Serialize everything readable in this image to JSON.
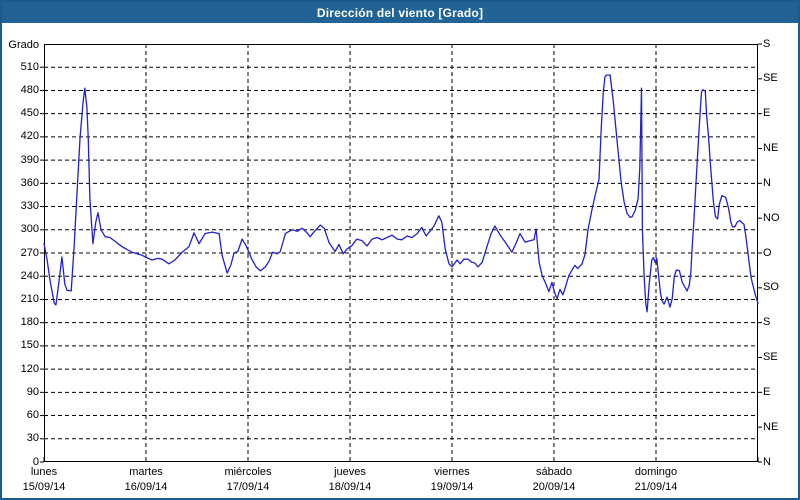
{
  "window": {
    "title": "Dirección del viento [Grado]"
  },
  "colors": {
    "titlebar_bg": "#206394",
    "window_border": "#1c5a8b",
    "line": "#2121c8",
    "grid": "#000000",
    "text": "#000000",
    "plot_bg": "#ffffff"
  },
  "chart_data": {
    "type": "line",
    "title": "Dirección del viento [Grado]",
    "legend_position": "none",
    "grid": {
      "style": "dashed",
      "h_step_deg": 30,
      "v_step_hours": 24
    },
    "x_axis": {
      "hours_range": [
        0,
        168
      ],
      "days": [
        {
          "name": "lunes",
          "date": "15/09/14"
        },
        {
          "name": "martes",
          "date": "16/09/14"
        },
        {
          "name": "miércoles",
          "date": "17/09/14"
        },
        {
          "name": "jueves",
          "date": "18/09/14"
        },
        {
          "name": "viernes",
          "date": "19/09/14"
        },
        {
          "name": "sábado",
          "date": "20/09/14"
        },
        {
          "name": "domingo",
          "date": "21/09/14"
        }
      ]
    },
    "y_axis_left": {
      "unit": "Grado",
      "tick_min": 0,
      "tick_max": 510,
      "tick_step": 30,
      "scale_max": 540
    },
    "y_axis_right": {
      "ticks": [
        {
          "deg": 540,
          "label": "S"
        },
        {
          "deg": 495,
          "label": "SE"
        },
        {
          "deg": 450,
          "label": "E"
        },
        {
          "deg": 405,
          "label": "NE"
        },
        {
          "deg": 360,
          "label": "N"
        },
        {
          "deg": 315,
          "label": "NO"
        },
        {
          "deg": 270,
          "label": "O"
        },
        {
          "deg": 225,
          "label": "SO"
        },
        {
          "deg": 180,
          "label": "S"
        },
        {
          "deg": 135,
          "label": "SE"
        },
        {
          "deg": 90,
          "label": "E"
        },
        {
          "deg": 45,
          "label": "NE"
        },
        {
          "deg": 0,
          "label": "N"
        }
      ]
    },
    "series": [
      {
        "name": "Dirección del viento",
        "color": "#2121c8",
        "points": [
          [
            0,
            282
          ],
          [
            0.7,
            262
          ],
          [
            1.4,
            235
          ],
          [
            2.4,
            205
          ],
          [
            2.8,
            203
          ],
          [
            3.5,
            232
          ],
          [
            4.2,
            265
          ],
          [
            4.9,
            230
          ],
          [
            5.4,
            222
          ],
          [
            6.4,
            221
          ],
          [
            7.1,
            280
          ],
          [
            7.8,
            350
          ],
          [
            8.5,
            420
          ],
          [
            9.2,
            465
          ],
          [
            9.6,
            483
          ],
          [
            10.1,
            458
          ],
          [
            10.4,
            420
          ],
          [
            10.8,
            340
          ],
          [
            11.5,
            282
          ],
          [
            12.2,
            310
          ],
          [
            12.7,
            322
          ],
          [
            13.4,
            300
          ],
          [
            14.4,
            291
          ],
          [
            15.5,
            290
          ],
          [
            16.5,
            286
          ],
          [
            18.4,
            278
          ],
          [
            20.7,
            271
          ],
          [
            23.1,
            267
          ],
          [
            23.8,
            265
          ],
          [
            25.4,
            261
          ],
          [
            26.8,
            263
          ],
          [
            27.8,
            262
          ],
          [
            29.4,
            256
          ],
          [
            30.8,
            261
          ],
          [
            32.5,
            271
          ],
          [
            34.1,
            278
          ],
          [
            35.3,
            296
          ],
          [
            36.5,
            282
          ],
          [
            37.9,
            295
          ],
          [
            39.5,
            297
          ],
          [
            41.2,
            295
          ],
          [
            41.9,
            267
          ],
          [
            43.1,
            244
          ],
          [
            44,
            255
          ],
          [
            44.7,
            270
          ],
          [
            45.6,
            272
          ],
          [
            46.6,
            288
          ],
          [
            47.5,
            280
          ],
          [
            48.9,
            262
          ],
          [
            49.9,
            252
          ],
          [
            50.9,
            247
          ],
          [
            52.1,
            252
          ],
          [
            53,
            260
          ],
          [
            53.8,
            271
          ],
          [
            54.9,
            269
          ],
          [
            55.6,
            272
          ],
          [
            56.8,
            295
          ],
          [
            57.7,
            298
          ],
          [
            58.4,
            300
          ],
          [
            59.6,
            298
          ],
          [
            60.7,
            302
          ],
          [
            61.9,
            296
          ],
          [
            62.6,
            291
          ],
          [
            63.5,
            297
          ],
          [
            65,
            306
          ],
          [
            65.9,
            302
          ],
          [
            67.1,
            283
          ],
          [
            68.5,
            272
          ],
          [
            69.4,
            281
          ],
          [
            70.4,
            269
          ],
          [
            71.3,
            275
          ],
          [
            72.5,
            280
          ],
          [
            73.6,
            288
          ],
          [
            74.8,
            286
          ],
          [
            76,
            279
          ],
          [
            77.2,
            288
          ],
          [
            78.4,
            290
          ],
          [
            79.5,
            287
          ],
          [
            80.7,
            290
          ],
          [
            81.9,
            293
          ],
          [
            83.1,
            288
          ],
          [
            84.2,
            287
          ],
          [
            85.4,
            292
          ],
          [
            86.6,
            290
          ],
          [
            87.8,
            295
          ],
          [
            88.9,
            303
          ],
          [
            89.9,
            292
          ],
          [
            90.8,
            298
          ],
          [
            91.8,
            305
          ],
          [
            92.9,
            318
          ],
          [
            93.6,
            310
          ],
          [
            94.4,
            275
          ],
          [
            95.3,
            256
          ],
          [
            96,
            252
          ],
          [
            97.2,
            261
          ],
          [
            97.9,
            256
          ],
          [
            98.8,
            262
          ],
          [
            99.8,
            262
          ],
          [
            100.7,
            258
          ],
          [
            101.4,
            257
          ],
          [
            102.1,
            252
          ],
          [
            103.1,
            258
          ],
          [
            104.2,
            278
          ],
          [
            105.2,
            295
          ],
          [
            106.1,
            305
          ],
          [
            107.1,
            295
          ],
          [
            108,
            288
          ],
          [
            109,
            280
          ],
          [
            110.1,
            271
          ],
          [
            111.1,
            283
          ],
          [
            112,
            295
          ],
          [
            113.2,
            284
          ],
          [
            114.4,
            286
          ],
          [
            115.3,
            287
          ],
          [
            115.8,
            301
          ],
          [
            116.5,
            258
          ],
          [
            117.2,
            241
          ],
          [
            118.1,
            230
          ],
          [
            118.8,
            220
          ],
          [
            119.5,
            232
          ],
          [
            120.2,
            218
          ],
          [
            120.7,
            211
          ],
          [
            121.4,
            223
          ],
          [
            122.1,
            216
          ],
          [
            122.8,
            228
          ],
          [
            123.5,
            241
          ],
          [
            124.9,
            254
          ],
          [
            125.6,
            250
          ],
          [
            126.6,
            256
          ],
          [
            127.3,
            268
          ],
          [
            128,
            300
          ],
          [
            128.9,
            325
          ],
          [
            129.9,
            350
          ],
          [
            130.6,
            365
          ],
          [
            131.1,
            430
          ],
          [
            131.6,
            478
          ],
          [
            132,
            498
          ],
          [
            132.4,
            500
          ],
          [
            133.2,
            500
          ],
          [
            133.9,
            468
          ],
          [
            134.4,
            440
          ],
          [
            135.1,
            400
          ],
          [
            135.8,
            362
          ],
          [
            136.5,
            336
          ],
          [
            137.2,
            321
          ],
          [
            137.9,
            316
          ],
          [
            138.4,
            317
          ],
          [
            139.1,
            325
          ],
          [
            139.8,
            340
          ],
          [
            140.2,
            380
          ],
          [
            140.6,
            483
          ],
          [
            140.8,
            300
          ],
          [
            141.2,
            240
          ],
          [
            141.6,
            204
          ],
          [
            141.9,
            194
          ],
          [
            142.4,
            230
          ],
          [
            143,
            261
          ],
          [
            143.4,
            264
          ],
          [
            143.8,
            258
          ],
          [
            144.2,
            263
          ],
          [
            145,
            220
          ],
          [
            145.4,
            208
          ],
          [
            145.9,
            204
          ],
          [
            146.6,
            213
          ],
          [
            147.3,
            200
          ],
          [
            147.8,
            211
          ],
          [
            148.3,
            240
          ],
          [
            148.8,
            248
          ],
          [
            149.5,
            247
          ],
          [
            150.2,
            232
          ],
          [
            150.9,
            225
          ],
          [
            151.3,
            221
          ],
          [
            151.8,
            228
          ],
          [
            152.2,
            244
          ],
          [
            152.5,
            276
          ],
          [
            152.9,
            310
          ],
          [
            153.3,
            349
          ],
          [
            153.7,
            388
          ],
          [
            154.1,
            426
          ],
          [
            154.5,
            461
          ],
          [
            154.7,
            478
          ],
          [
            155,
            481
          ],
          [
            155.6,
            479
          ],
          [
            155.9,
            448
          ],
          [
            156.4,
            418
          ],
          [
            156.7,
            392
          ],
          [
            157.2,
            357
          ],
          [
            157.5,
            336
          ],
          [
            158,
            317
          ],
          [
            158.5,
            314
          ],
          [
            158.9,
            333
          ],
          [
            159.5,
            344
          ],
          [
            160.4,
            342
          ],
          [
            161.1,
            327
          ],
          [
            161.6,
            310
          ],
          [
            162,
            304
          ],
          [
            162.6,
            304
          ],
          [
            163.1,
            310
          ],
          [
            163.7,
            312
          ],
          [
            164.7,
            307
          ],
          [
            165.1,
            293
          ],
          [
            165.5,
            276
          ],
          [
            165.9,
            258
          ],
          [
            166.3,
            241
          ],
          [
            166.6,
            233
          ],
          [
            167,
            224
          ],
          [
            167.4,
            215
          ],
          [
            168,
            205
          ]
        ]
      }
    ]
  }
}
